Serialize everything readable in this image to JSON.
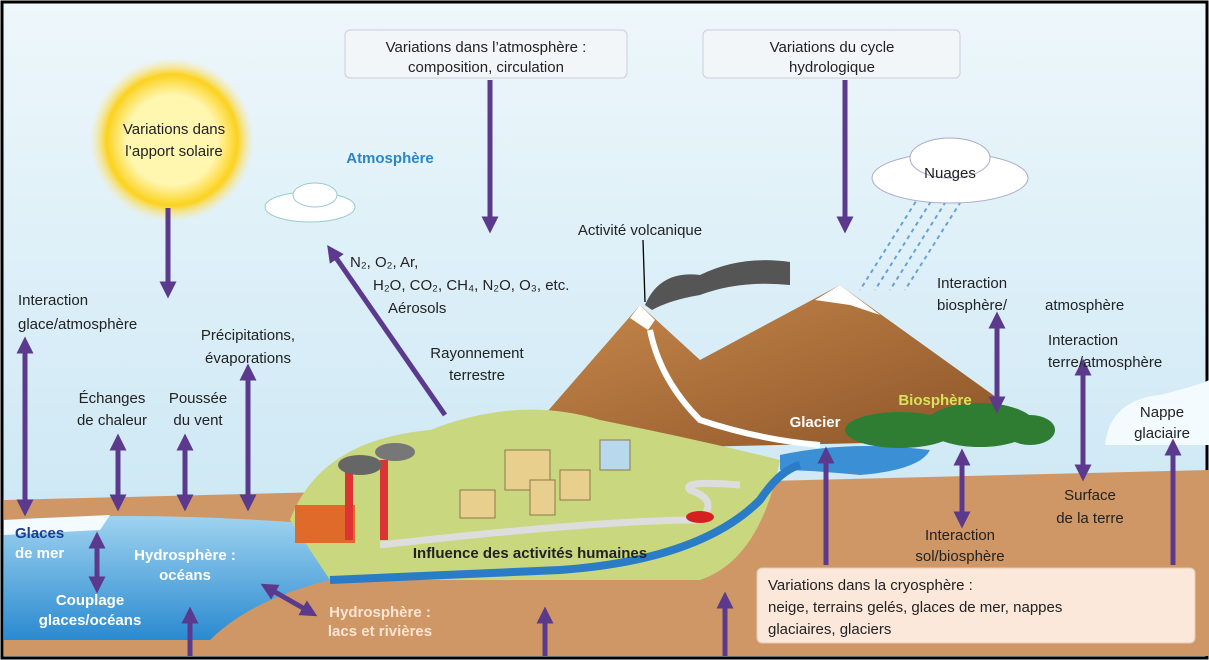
{
  "boxes": {
    "atmosphere": [
      "Variations dans l’atmosphère :",
      "composition, circulation"
    ],
    "hydrologic": [
      "Variations du cycle",
      "hydrologique"
    ],
    "cryosphere": [
      "Variations dans la cryosphère :",
      "neige, terrains gelés, glaces de  mer, nappes",
      "glaciaires, glaciers"
    ]
  },
  "sun": [
    "Variations dans",
    "l’apport solaire"
  ],
  "labels": {
    "atmosphere_zone": "Atmosphère",
    "clouds": "Nuages",
    "volcano": "Activité volcanique",
    "gases": [
      "N₂, O₂, Ar,",
      "H₂O, CO₂, CH₄, N₂O, O₃, etc.",
      "Aérosols"
    ],
    "ice_atmosphere": [
      "Interaction",
      "glace/atmosphère"
    ],
    "precipitation": [
      "Précipitations,",
      "évaporations"
    ],
    "heat": [
      "Échanges",
      "de chaleur"
    ],
    "wind": [
      "Poussée",
      "du vent"
    ],
    "radiation": [
      "Rayonnement",
      "terrestre"
    ],
    "biosphere_atmosphere": [
      "Interaction",
      "biosphère/",
      "atmosphère"
    ],
    "land_atmosphere": [
      "Interaction",
      "terre/atmosphère"
    ],
    "glacier": "Glacier",
    "biosphere": "Biosphère",
    "ice_sheet": [
      "Nappe",
      "glaciaire"
    ],
    "land_surface": [
      "Surface",
      "de la terre"
    ],
    "soil_biosphere": [
      "Interaction",
      "sol/biosphère"
    ],
    "sea_ice": [
      "Glaces",
      "de mer"
    ],
    "oceans": [
      "Hydrosphère :",
      "océans"
    ],
    "coupling": [
      "Couplage",
      "glaces/océans"
    ],
    "lakes": [
      "Hydrosphère :",
      "lacs et rivières"
    ],
    "human": "Influence des activités humaines"
  }
}
